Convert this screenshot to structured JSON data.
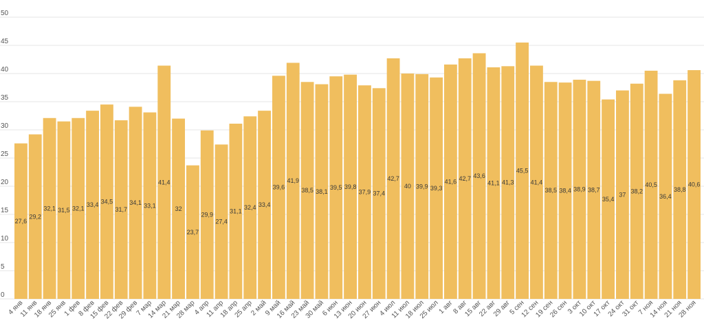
{
  "chart_data": {
    "type": "bar",
    "categories": [
      "4 янв",
      "11 янв",
      "18 янв",
      "25 янв",
      "1 фев",
      "8 фев",
      "15 фев",
      "22 фев",
      "29 фев",
      "7 мар",
      "14 мар",
      "21 мар",
      "28 мар",
      "4 апр",
      "11 апр",
      "18 апр",
      "25 апр",
      "2 май",
      "9 май",
      "16 май",
      "23 май",
      "30 май",
      "6 июн",
      "13 июн",
      "20 июн",
      "27 июн",
      "4 июл",
      "11 июл",
      "18 июл",
      "25 июл",
      "1 авг",
      "8 авг",
      "15 авг",
      "22 авг",
      "29 авг",
      "5 сен",
      "12 сен",
      "19 сен",
      "26 сен",
      "3 окт",
      "10 окт",
      "17 окт",
      "24 окт",
      "31 окт",
      "7 ноя",
      "14 ноя",
      "21 ноя",
      "28 ноя"
    ],
    "values": [
      27.6,
      29.2,
      32.1,
      31.5,
      32.1,
      33.4,
      34.5,
      31.7,
      34.1,
      33.1,
      41.4,
      32,
      23.7,
      29.9,
      27.4,
      31.1,
      32.4,
      33.4,
      39.6,
      41.9,
      38.5,
      38.1,
      39.5,
      39.8,
      37.9,
      37.4,
      42.7,
      40,
      39.9,
      39.3,
      41.6,
      42.7,
      43.6,
      41.1,
      41.3,
      45.5,
      41.4,
      38.5,
      38.4,
      38.9,
      38.7,
      35.4,
      37,
      38.2,
      40.5,
      36.4,
      38.8,
      40.6
    ],
    "value_labels": [
      "27,6",
      "29,2",
      "32,1",
      "31,5",
      "32,1",
      "33,4",
      "34,5",
      "31,7",
      "34,1",
      "33,1",
      "41,4",
      "32",
      "23,7",
      "29,9",
      "27,4",
      "31,1",
      "32,4",
      "33,4",
      "39,6",
      "41,9",
      "38,5",
      "38,1",
      "39,5",
      "39,8",
      "37,9",
      "37,4",
      "42,7",
      "40",
      "39,9",
      "39,3",
      "41,6",
      "42,7",
      "43,6",
      "41,1",
      "41,3",
      "45,5",
      "41,4",
      "38,5",
      "38,4",
      "38,9",
      "38,7",
      "35,4",
      "37",
      "38,2",
      "40,5",
      "36,4",
      "38,8",
      "40,6"
    ],
    "y_ticks": [
      "0",
      "5",
      "10",
      "15",
      "20",
      "25",
      "30",
      "35",
      "40",
      "45",
      "50"
    ],
    "ylim": [
      0,
      50
    ],
    "grid": true,
    "title": "",
    "xlabel": "",
    "ylabel": "",
    "colors": {
      "bar": "#F0BE5E",
      "grid": "#E6E6E6",
      "axis_text": "#555555"
    }
  }
}
